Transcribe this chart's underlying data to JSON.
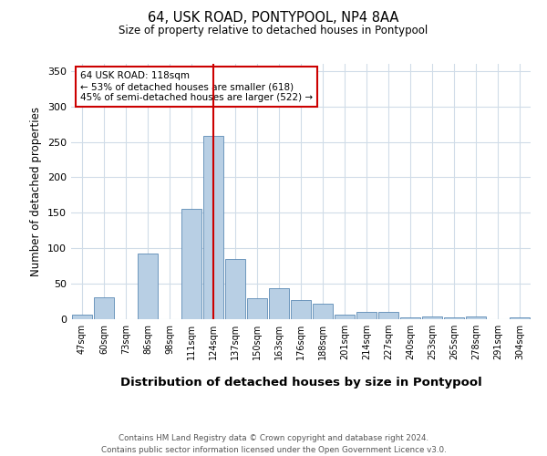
{
  "title": "64, USK ROAD, PONTYPOOL, NP4 8AA",
  "subtitle": "Size of property relative to detached houses in Pontypool",
  "xlabel": "Distribution of detached houses by size in Pontypool",
  "ylabel": "Number of detached properties",
  "footer_line1": "Contains HM Land Registry data © Crown copyright and database right 2024.",
  "footer_line2": "Contains public sector information licensed under the Open Government Licence v3.0.",
  "categories": [
    "47sqm",
    "60sqm",
    "73sqm",
    "86sqm",
    "98sqm",
    "111sqm",
    "124sqm",
    "137sqm",
    "150sqm",
    "163sqm",
    "176sqm",
    "188sqm",
    "201sqm",
    "214sqm",
    "227sqm",
    "240sqm",
    "253sqm",
    "265sqm",
    "278sqm",
    "291sqm",
    "304sqm"
  ],
  "values": [
    7,
    31,
    0,
    93,
    0,
    155,
    258,
    85,
    29,
    44,
    27,
    22,
    7,
    10,
    10,
    3,
    4,
    3,
    4,
    0,
    3
  ],
  "bar_color": "#b8cfe4",
  "bar_edge_color": "#5c8ab5",
  "vline_x": 6,
  "vline_color": "#cc0000",
  "annotation_text": "64 USK ROAD: 118sqm\n← 53% of detached houses are smaller (618)\n45% of semi-detached houses are larger (522) →",
  "annotation_box_edge": "#cc0000",
  "annotation_fontsize": 7.5,
  "ylim": [
    0,
    360
  ],
  "yticks": [
    0,
    50,
    100,
    150,
    200,
    250,
    300,
    350
  ],
  "background_color": "#ffffff",
  "grid_color": "#d0dce8"
}
